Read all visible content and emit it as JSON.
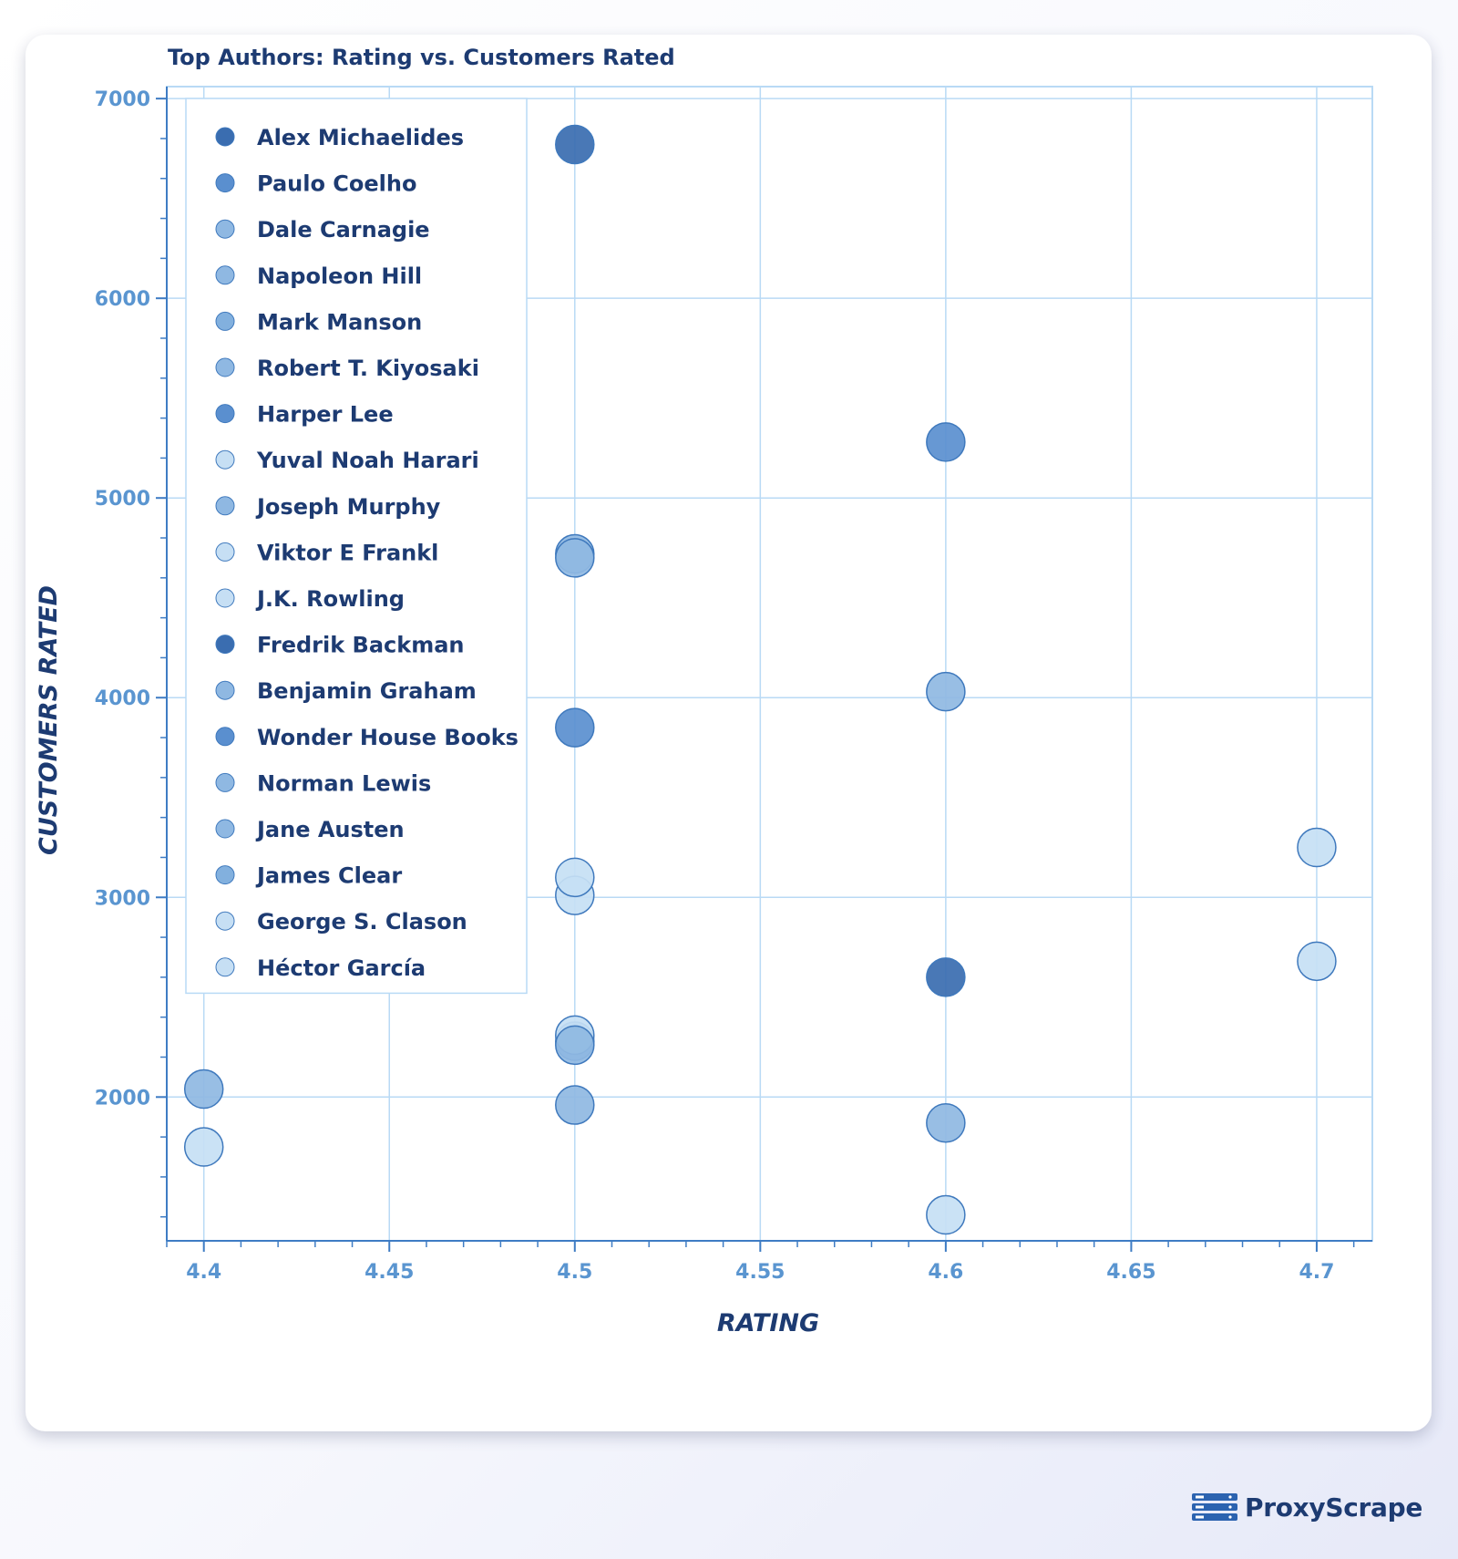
{
  "chart_data": {
    "type": "scatter",
    "title": "Top Authors: Rating vs.  Customers Rated",
    "xlabel": "RATING",
    "ylabel": "CUSTOMERS RATED",
    "xlim": [
      4.39,
      4.715
    ],
    "ylim": [
      1280,
      7060
    ],
    "xticks": [
      "4.4",
      "4.45",
      "4.5",
      "4.55",
      "4.6",
      "4.65",
      "4.7"
    ],
    "yticks": [
      "2000",
      "3000",
      "4000",
      "5000",
      "6000",
      "7000"
    ],
    "grid": true,
    "legend_position": "top-left",
    "series": [
      {
        "name": "Alex Michaelides",
        "color": "#3a6db0",
        "points": [
          [
            4.5,
            6770
          ]
        ]
      },
      {
        "name": "Paulo Coelho",
        "color": "#5a8fcf",
        "points": [
          [
            4.6,
            5280
          ]
        ]
      },
      {
        "name": "Dale Carnagie",
        "color": "#8fb8e2",
        "points": [
          [
            4.5,
            4720
          ],
          [
            4.6,
            4030
          ]
        ]
      },
      {
        "name": "Napoleon Hill",
        "color": "#8fb8e2",
        "points": [
          [
            4.5,
            4700
          ]
        ]
      },
      {
        "name": "Mark Manson",
        "color": "#82b0de",
        "points": [
          [
            4.5,
            2280
          ]
        ]
      },
      {
        "name": "Robert T. Kiyosaki",
        "color": "#8fb8e2",
        "points": [
          [
            4.4,
            2040
          ]
        ]
      },
      {
        "name": "Harper Lee",
        "color": "#5a8fcf",
        "points": [
          [
            4.5,
            3850
          ]
        ]
      },
      {
        "name": "Yuval Noah Harari",
        "color": "#c6dff4",
        "points": [
          [
            4.5,
            3010
          ]
        ]
      },
      {
        "name": "Joseph Murphy",
        "color": "#8fb8e2",
        "points": [
          [
            4.5,
            1960
          ],
          [
            4.6,
            1870
          ]
        ]
      },
      {
        "name": "Viktor E Frankl",
        "color": "#c6dff4",
        "points": [
          [
            4.5,
            2310
          ],
          [
            4.7,
            2680
          ]
        ]
      },
      {
        "name": "J.K. Rowling",
        "color": "#c6dff4",
        "points": [
          [
            4.4,
            1750
          ],
          [
            4.7,
            3250
          ]
        ]
      },
      {
        "name": "Fredrik Backman",
        "color": "#3a6db0",
        "points": [
          [
            4.6,
            2600
          ]
        ]
      },
      {
        "name": "Benjamin Graham",
        "color": "#8fb8e2",
        "points": [
          [
            4.5,
            2260
          ]
        ]
      },
      {
        "name": "Wonder House Books",
        "color": "#5a8fcf",
        "points": []
      },
      {
        "name": "Norman Lewis",
        "color": "#8fb8e2",
        "points": []
      },
      {
        "name": "Jane Austen",
        "color": "#8fb8e2",
        "points": []
      },
      {
        "name": "James Clear",
        "color": "#82b0de",
        "points": []
      },
      {
        "name": "George S. Clason",
        "color": "#c6dff4",
        "points": [
          [
            4.6,
            1410
          ]
        ]
      },
      {
        "name": "Héctor García",
        "color": "#c6dff4",
        "points": [
          [
            4.5,
            3100
          ]
        ]
      }
    ]
  },
  "brand": {
    "name": "ProxyScrape",
    "icon": "proxyscrape-logo-icon",
    "color": "#1d3b72"
  },
  "style": {
    "grid_color": "#b9daf5",
    "tick_label_color": "#5a95d0",
    "label_color": "#1d3b72",
    "point_stroke": "#3f79bd"
  }
}
